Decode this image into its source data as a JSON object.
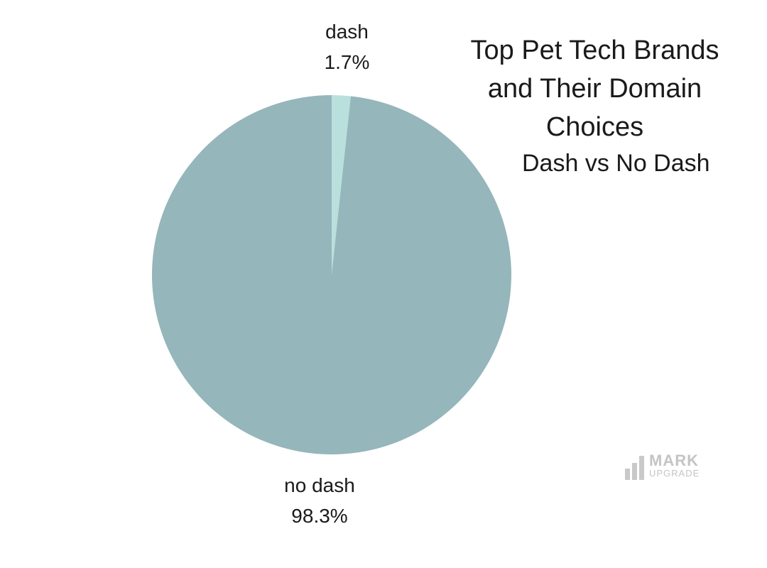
{
  "chart_data": {
    "type": "pie",
    "title_lines": [
      "Top Pet Tech Brands",
      "and Their Domain",
      "Choices"
    ],
    "subtitle": "Dash vs No Dash",
    "slices": [
      {
        "label": "dash",
        "value": 1.7,
        "value_label": "1.7%",
        "color": "#b9e0dc"
      },
      {
        "label": "no dash",
        "value": 98.3,
        "value_label": "98.3%",
        "color": "#95b6ba"
      }
    ]
  },
  "logo": {
    "line1": "MARK",
    "line2": "UPGRADE",
    "color": "#c4c4c4"
  }
}
